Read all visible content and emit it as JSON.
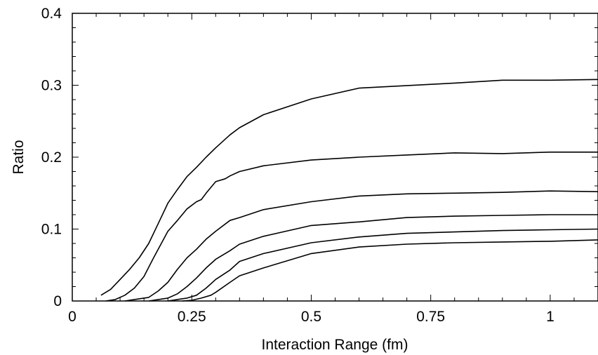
{
  "chart_data": {
    "type": "line",
    "title": "",
    "xlabel": "Interaction Range (fm)",
    "ylabel": "Ratio",
    "xlim": [
      0,
      1.1
    ],
    "ylim": [
      0,
      0.4
    ],
    "xticks": [
      0,
      0.25,
      0.5,
      0.75,
      1
    ],
    "xtick_labels": [
      "0",
      "0.25",
      "0.5",
      "0.75",
      "1"
    ],
    "yticks": [
      0,
      0.1,
      0.2,
      0.3,
      0.4
    ],
    "ytick_labels": [
      "0",
      "0.1",
      "0.2",
      "0.3",
      "0.4"
    ],
    "grid": false,
    "line_color": "#000000",
    "series": [
      {
        "x": [
          0.06,
          0.08,
          0.1,
          0.12,
          0.14,
          0.16,
          0.18,
          0.2,
          0.22,
          0.24,
          0.26,
          0.28,
          0.3,
          0.33,
          0.35,
          0.4,
          0.5,
          0.6,
          0.8,
          0.9,
          1.0,
          1.1
        ],
        "y": [
          0.008,
          0.016,
          0.03,
          0.044,
          0.06,
          0.08,
          0.108,
          0.136,
          0.155,
          0.173,
          0.186,
          0.2,
          0.213,
          0.231,
          0.241,
          0.259,
          0.281,
          0.296,
          0.303,
          0.307,
          0.307,
          0.308
        ]
      },
      {
        "x": [
          0.07,
          0.09,
          0.11,
          0.13,
          0.15,
          0.17,
          0.2,
          0.22,
          0.24,
          0.26,
          0.27,
          0.28,
          0.3,
          0.32,
          0.33,
          0.35,
          0.4,
          0.5,
          0.6,
          0.7,
          0.8,
          0.9,
          1.0,
          1.1
        ],
        "y": [
          0.0,
          0.002,
          0.008,
          0.018,
          0.034,
          0.06,
          0.097,
          0.112,
          0.128,
          0.138,
          0.141,
          0.15,
          0.166,
          0.17,
          0.174,
          0.18,
          0.188,
          0.196,
          0.2,
          0.203,
          0.206,
          0.205,
          0.207,
          0.207
        ]
      },
      {
        "x": [
          0.11,
          0.13,
          0.15,
          0.16,
          0.18,
          0.2,
          0.22,
          0.24,
          0.26,
          0.28,
          0.3,
          0.33,
          0.35,
          0.4,
          0.5,
          0.6,
          0.7,
          0.8,
          0.9,
          1.0,
          1.1
        ],
        "y": [
          0.0,
          0.002,
          0.004,
          0.005,
          0.014,
          0.026,
          0.044,
          0.06,
          0.072,
          0.086,
          0.097,
          0.112,
          0.116,
          0.127,
          0.138,
          0.146,
          0.149,
          0.15,
          0.151,
          0.153,
          0.152
        ]
      },
      {
        "x": [
          0.16,
          0.18,
          0.2,
          0.22,
          0.24,
          0.26,
          0.28,
          0.3,
          0.33,
          0.35,
          0.4,
          0.5,
          0.6,
          0.7,
          0.8,
          0.9,
          1.0,
          1.1
        ],
        "y": [
          0.0,
          0.002,
          0.004,
          0.01,
          0.02,
          0.032,
          0.046,
          0.058,
          0.07,
          0.079,
          0.09,
          0.105,
          0.11,
          0.116,
          0.118,
          0.119,
          0.12,
          0.12
        ]
      },
      {
        "x": [
          0.2,
          0.22,
          0.24,
          0.26,
          0.28,
          0.3,
          0.33,
          0.35,
          0.4,
          0.5,
          0.6,
          0.7,
          0.8,
          0.9,
          1.0,
          1.1
        ],
        "y": [
          0.0,
          0.002,
          0.004,
          0.008,
          0.018,
          0.03,
          0.043,
          0.055,
          0.066,
          0.081,
          0.089,
          0.094,
          0.096,
          0.098,
          0.099,
          0.1
        ]
      },
      {
        "x": [
          0.23,
          0.25,
          0.27,
          0.29,
          0.3,
          0.33,
          0.35,
          0.4,
          0.5,
          0.6,
          0.7,
          0.8,
          0.9,
          1.0,
          1.1
        ],
        "y": [
          0.0,
          0.001,
          0.004,
          0.008,
          0.012,
          0.026,
          0.035,
          0.046,
          0.066,
          0.075,
          0.079,
          0.081,
          0.082,
          0.083,
          0.085
        ]
      }
    ]
  }
}
